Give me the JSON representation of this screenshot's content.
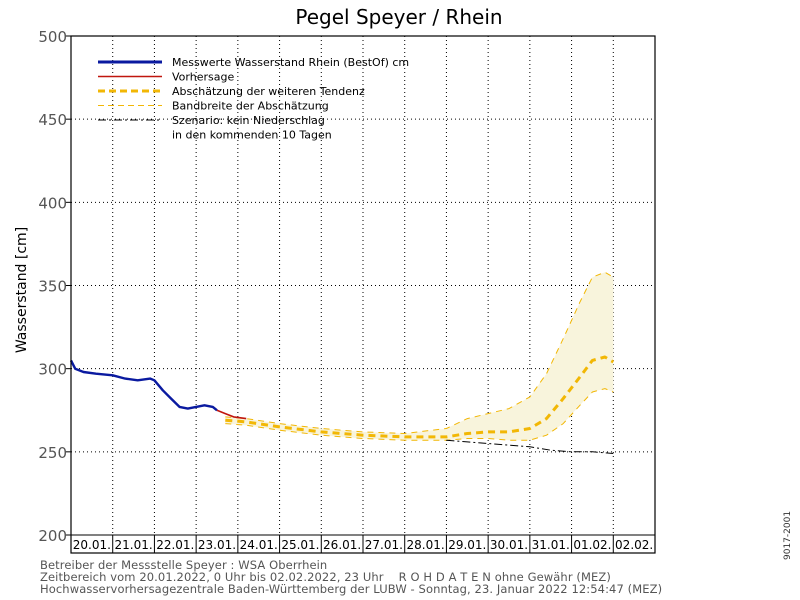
{
  "chart_data": {
    "type": "line",
    "title": "Pegel Speyer / Rhein",
    "ylabel": "Wasserstand [cm]",
    "xlabel": "",
    "ylim": [
      200,
      500
    ],
    "yticks": [
      200,
      250,
      300,
      350,
      400,
      450,
      500
    ],
    "x_start": "20.01.",
    "x_end": "02.02.",
    "categories": [
      "20.01.",
      "21.01.",
      "22.01.",
      "23.01.",
      "24.01.",
      "25.01.",
      "26.01.",
      "27.01.",
      "28.01.",
      "29.01.",
      "30.01.",
      "31.01.",
      "01.02.",
      "02.02."
    ],
    "grid": true,
    "legend_position": "top-left",
    "legend": [
      {
        "label": "Messwerte Wasserstand Rhein (BestOf)   cm",
        "color": "#0a1aa0",
        "style": "solid-thick"
      },
      {
        "label": "Vorhersage",
        "color": "#c0160e",
        "style": "solid"
      },
      {
        "label": "Abschätzung der weiteren Tendenz",
        "color": "#f2b705",
        "style": "dashed-thick"
      },
      {
        "label": "Bandbreite der Abschätzung",
        "color": "#f2b705",
        "style": "dashed-thin"
      },
      {
        "label": "Szenario: kein Niederschlag",
        "label2": "in den kommenden 10 Tagen",
        "color": "#000000",
        "style": "dash-dot"
      }
    ],
    "series": [
      {
        "name": "Messwerte Wasserstand Rhein (BestOf)   cm",
        "color": "#0a1aa0",
        "points": [
          [
            0.0,
            305
          ],
          [
            0.1,
            300
          ],
          [
            0.3,
            298
          ],
          [
            0.6,
            297
          ],
          [
            1.0,
            296
          ],
          [
            1.3,
            294
          ],
          [
            1.6,
            293
          ],
          [
            1.9,
            294
          ],
          [
            2.0,
            293
          ],
          [
            2.2,
            287
          ],
          [
            2.4,
            282
          ],
          [
            2.6,
            277
          ],
          [
            2.8,
            276
          ],
          [
            3.0,
            277
          ],
          [
            3.2,
            278
          ],
          [
            3.4,
            277
          ],
          [
            3.5,
            275
          ]
        ]
      },
      {
        "name": "Vorhersage",
        "color": "#c0160e",
        "points": [
          [
            3.5,
            275
          ],
          [
            3.7,
            273
          ],
          [
            3.9,
            271
          ],
          [
            4.2,
            270
          ]
        ]
      },
      {
        "name": "Abschätzung der weiteren Tendenz",
        "color": "#f2b705",
        "points": [
          [
            3.7,
            269
          ],
          [
            4.2,
            268
          ],
          [
            5.0,
            265
          ],
          [
            6.0,
            262
          ],
          [
            7.0,
            260
          ],
          [
            8.0,
            259
          ],
          [
            9.0,
            259
          ],
          [
            9.5,
            261
          ],
          [
            10.0,
            262
          ],
          [
            10.5,
            262
          ],
          [
            11.0,
            264
          ],
          [
            11.4,
            270
          ],
          [
            11.8,
            282
          ],
          [
            12.2,
            295
          ],
          [
            12.5,
            305
          ],
          [
            12.8,
            307
          ],
          [
            13.0,
            304
          ]
        ]
      },
      {
        "name": "Bandbreite der Abschätzung (oben)",
        "color": "#f2b705",
        "points": [
          [
            3.7,
            271
          ],
          [
            4.2,
            270
          ],
          [
            5.0,
            267
          ],
          [
            6.0,
            264
          ],
          [
            7.0,
            262
          ],
          [
            8.0,
            261
          ],
          [
            9.0,
            264
          ],
          [
            9.5,
            270
          ],
          [
            10.0,
            273
          ],
          [
            10.5,
            276
          ],
          [
            11.0,
            283
          ],
          [
            11.4,
            297
          ],
          [
            11.8,
            318
          ],
          [
            12.2,
            340
          ],
          [
            12.5,
            355
          ],
          [
            12.8,
            358
          ],
          [
            13.0,
            355
          ]
        ]
      },
      {
        "name": "Bandbreite der Abschätzung (unten)",
        "color": "#f2b705",
        "points": [
          [
            3.7,
            267
          ],
          [
            4.2,
            266
          ],
          [
            5.0,
            263
          ],
          [
            6.0,
            260
          ],
          [
            7.0,
            258
          ],
          [
            8.0,
            257
          ],
          [
            9.0,
            257
          ],
          [
            9.5,
            258
          ],
          [
            10.0,
            258
          ],
          [
            10.5,
            257
          ],
          [
            11.0,
            257
          ],
          [
            11.4,
            260
          ],
          [
            11.8,
            267
          ],
          [
            12.2,
            278
          ],
          [
            12.5,
            286
          ],
          [
            12.8,
            288
          ],
          [
            13.0,
            286
          ]
        ]
      },
      {
        "name": "Szenario: kein Niederschlag",
        "color": "#000000",
        "points": [
          [
            9.0,
            257
          ],
          [
            9.5,
            256
          ],
          [
            10.0,
            255
          ],
          [
            10.5,
            254
          ],
          [
            11.0,
            253
          ],
          [
            11.5,
            251
          ],
          [
            12.0,
            250
          ],
          [
            12.5,
            250
          ],
          [
            13.0,
            249
          ]
        ]
      }
    ]
  },
  "footer": {
    "line1": "Betreiber der Messstelle Speyer : WSA Oberrhein",
    "line2": "Zeitbereich vom 20.01.2022, 0 Uhr bis 02.02.2022, 23 Uhr    R O H D A T E N ohne Gewähr (MEZ)",
    "line3": "Hochwasservorhersagezentrale Baden-Württemberg der LUBW - Sonntag, 23. Januar 2022 12:54:47 (MEZ)"
  },
  "side_code": "9017-2001",
  "colors": {
    "measured": "#0a1aa0",
    "forecast": "#c0160e",
    "trend": "#f2b705",
    "band_fill": "#f8f4dc",
    "scenario": "#000000"
  }
}
